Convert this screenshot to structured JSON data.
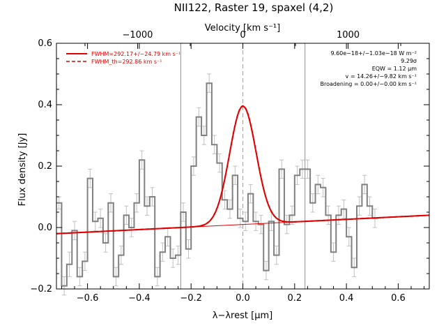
{
  "chart_data": {
    "type": "line",
    "title": "NII122, Raster 19, spaxel (4,2)",
    "xlabel": "λ−λrest [μm]",
    "ylabel": "Flux density [Jy]",
    "top_axis_label": "Velocity [km s⁻¹]",
    "xlim": [
      -0.72,
      0.72
    ],
    "ylim": [
      -0.2,
      0.6
    ],
    "x_ticks": [
      "−0.6",
      "−0.4",
      "−0.2",
      "0.0",
      "0.2",
      "0.4",
      "0.6"
    ],
    "x_tick_values": [
      -0.6,
      -0.4,
      -0.2,
      0.0,
      0.2,
      0.4,
      0.6
    ],
    "y_ticks": [
      "−0.2",
      "0.0",
      "0.2",
      "0.4",
      "0.6"
    ],
    "y_tick_values": [
      -0.2,
      0.0,
      0.2,
      0.4,
      0.6
    ],
    "top_ticks": [
      "−1000",
      "0",
      "1000"
    ],
    "top_tick_values": [
      -1000,
      0,
      1000
    ],
    "velocity_per_micron": 2460,
    "vertical_lines": [
      -0.24,
      0.24
    ],
    "zero_line": 0.0,
    "legend": [
      {
        "label": "FWHM=292.17+/−24.79 km s⁻¹",
        "style": "solid",
        "color": "#e00000"
      },
      {
        "label": "FWHM_th=292.86 km s⁻¹",
        "style": "dashed",
        "color": "#e00000"
      }
    ],
    "annotations": [
      "9.60e−18+/−1.03e−18 W m⁻²",
      "9.29σ",
      "EQW = 1.12 μm",
      "v = 14.26+/−9.82 km s⁻¹",
      "Broadening = 0.00+/−0.00 km s⁻¹"
    ],
    "spectrum": {
      "bin_start": -0.72,
      "bin_width": 0.02,
      "values": [
        0.08,
        -0.19,
        -0.12,
        -0.01,
        -0.16,
        -0.11,
        0.16,
        0.02,
        0.03,
        -0.05,
        0.08,
        -0.16,
        -0.09,
        0.04,
        0.0,
        0.08,
        0.22,
        0.07,
        0.1,
        -0.16,
        -0.08,
        -0.03,
        -0.1,
        -0.09,
        0.05,
        -0.07,
        0.2,
        0.36,
        0.3,
        0.47,
        0.27,
        0.21,
        0.09,
        0.06,
        0.17,
        0.03,
        0.02,
        0.11,
        0.02,
        0.01,
        -0.14,
        0.02,
        -0.09,
        0.19,
        0.01,
        0.04,
        0.17,
        0.19,
        0.19,
        0.08,
        0.14,
        0.13,
        0.04,
        -0.08,
        0.04,
        0.06,
        -0.03,
        -0.13,
        0.07,
        0.14,
        0.07,
        0.03
      ],
      "errors": [
        0.02,
        0.03,
        0.04,
        0.03,
        0.03,
        0.03,
        0.03,
        0.03,
        0.03,
        0.03,
        0.03,
        0.03,
        0.03,
        0.03,
        0.03,
        0.03,
        0.03,
        0.03,
        0.03,
        0.03,
        0.03,
        0.03,
        0.03,
        0.03,
        0.03,
        0.03,
        0.03,
        0.03,
        0.03,
        0.03,
        0.03,
        0.03,
        0.03,
        0.03,
        0.03,
        0.03,
        0.03,
        0.03,
        0.03,
        0.03,
        0.03,
        0.03,
        0.03,
        0.03,
        0.03,
        0.03,
        0.03,
        0.03,
        0.03,
        0.03,
        0.03,
        0.03,
        0.03,
        0.03,
        0.03,
        0.03,
        0.03,
        0.03,
        0.03,
        0.03,
        0.03,
        0.03
      ]
    },
    "fit": {
      "baseline": [
        [
          -0.72,
          -0.02
        ],
        [
          0.72,
          0.04
        ]
      ],
      "center": 0.0,
      "amplitude": 0.385,
      "sigma": 0.051
    },
    "colors": {
      "spectrum": "#808080",
      "errorbars": "#c0c0c0",
      "fit": "#e00000",
      "vlines": "#909090",
      "zero_line": "#a0a0a0"
    }
  }
}
